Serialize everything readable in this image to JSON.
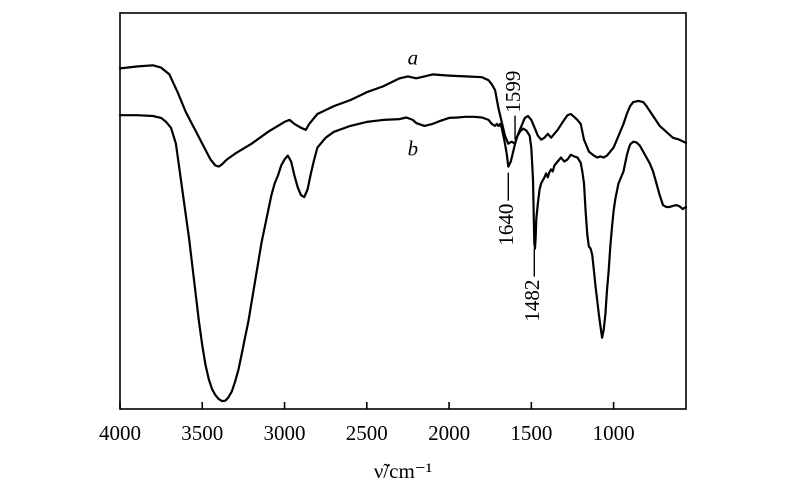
{
  "chart_data": {
    "type": "line",
    "xlabel": "ν̃/cm⁻¹",
    "xlim": [
      4000,
      560
    ],
    "ylim": [
      0,
      100
    ],
    "grid": false,
    "x_ticks": [
      4000,
      3500,
      3000,
      2500,
      2000,
      1500,
      1000
    ],
    "series": [
      {
        "name": "a",
        "label_at": [
          2220,
          87
        ],
        "points": [
          [
            4000,
            86
          ],
          [
            3900,
            86.5
          ],
          [
            3800,
            86.8
          ],
          [
            3750,
            86.2
          ],
          [
            3700,
            84.5
          ],
          [
            3650,
            80
          ],
          [
            3600,
            75
          ],
          [
            3550,
            71
          ],
          [
            3500,
            67
          ],
          [
            3450,
            63
          ],
          [
            3420,
            61.5
          ],
          [
            3400,
            61.2
          ],
          [
            3380,
            61.8
          ],
          [
            3350,
            63
          ],
          [
            3300,
            64.5
          ],
          [
            3200,
            67
          ],
          [
            3100,
            70
          ],
          [
            3000,
            72.5
          ],
          [
            2970,
            73
          ],
          [
            2940,
            72
          ],
          [
            2900,
            71
          ],
          [
            2870,
            70.5
          ],
          [
            2850,
            72
          ],
          [
            2800,
            74.5
          ],
          [
            2700,
            76.5
          ],
          [
            2600,
            78
          ],
          [
            2500,
            80
          ],
          [
            2400,
            81.5
          ],
          [
            2300,
            83.5
          ],
          [
            2250,
            84
          ],
          [
            2200,
            83.5
          ],
          [
            2150,
            84
          ],
          [
            2100,
            84.5
          ],
          [
            2000,
            84.2
          ],
          [
            1900,
            84
          ],
          [
            1800,
            83.8
          ],
          [
            1760,
            83
          ],
          [
            1740,
            82
          ],
          [
            1720,
            80.5
          ],
          [
            1700,
            76
          ],
          [
            1680,
            72.5
          ],
          [
            1660,
            69
          ],
          [
            1640,
            67
          ],
          [
            1620,
            67.5
          ],
          [
            1599,
            67
          ],
          [
            1580,
            69.5
          ],
          [
            1560,
            71.5
          ],
          [
            1540,
            73.5
          ],
          [
            1520,
            74
          ],
          [
            1500,
            73
          ],
          [
            1482,
            71.2
          ],
          [
            1460,
            69
          ],
          [
            1440,
            68
          ],
          [
            1420,
            68.5
          ],
          [
            1400,
            69.5
          ],
          [
            1380,
            68.5
          ],
          [
            1360,
            69.5
          ],
          [
            1340,
            70.5
          ],
          [
            1320,
            71.8
          ],
          [
            1300,
            73
          ],
          [
            1280,
            74.2
          ],
          [
            1260,
            74.5
          ],
          [
            1240,
            73.8
          ],
          [
            1220,
            73
          ],
          [
            1200,
            72
          ],
          [
            1180,
            68
          ],
          [
            1150,
            65
          ],
          [
            1120,
            64
          ],
          [
            1100,
            63.5
          ],
          [
            1080,
            63.8
          ],
          [
            1060,
            63.5
          ],
          [
            1040,
            64
          ],
          [
            1020,
            65
          ],
          [
            1000,
            66
          ],
          [
            980,
            68
          ],
          [
            960,
            70
          ],
          [
            940,
            72
          ],
          [
            920,
            74.5
          ],
          [
            900,
            76.5
          ],
          [
            880,
            77.5
          ],
          [
            850,
            77.8
          ],
          [
            820,
            77.5
          ],
          [
            800,
            76.5
          ],
          [
            760,
            74
          ],
          [
            720,
            71.5
          ],
          [
            680,
            70
          ],
          [
            640,
            68.5
          ],
          [
            600,
            68
          ],
          [
            560,
            67.2
          ]
        ]
      },
      {
        "name": "b",
        "label_at": [
          2220,
          64
        ],
        "points": [
          [
            4000,
            74.2
          ],
          [
            3900,
            74.2
          ],
          [
            3800,
            74
          ],
          [
            3750,
            73.5
          ],
          [
            3720,
            72.5
          ],
          [
            3690,
            71
          ],
          [
            3660,
            67
          ],
          [
            3640,
            61
          ],
          [
            3620,
            55
          ],
          [
            3600,
            49
          ],
          [
            3580,
            43
          ],
          [
            3560,
            36
          ],
          [
            3540,
            29
          ],
          [
            3520,
            22
          ],
          [
            3500,
            16
          ],
          [
            3480,
            11
          ],
          [
            3460,
            7.5
          ],
          [
            3440,
            5
          ],
          [
            3420,
            3.5
          ],
          [
            3400,
            2.5
          ],
          [
            3380,
            2
          ],
          [
            3360,
            2.1
          ],
          [
            3340,
            3
          ],
          [
            3320,
            4.5
          ],
          [
            3300,
            7
          ],
          [
            3280,
            10
          ],
          [
            3260,
            14
          ],
          [
            3240,
            18
          ],
          [
            3220,
            22
          ],
          [
            3200,
            27
          ],
          [
            3180,
            32
          ],
          [
            3160,
            37
          ],
          [
            3140,
            42
          ],
          [
            3120,
            46
          ],
          [
            3100,
            50
          ],
          [
            3080,
            54
          ],
          [
            3060,
            57
          ],
          [
            3040,
            59
          ],
          [
            3020,
            61.5
          ],
          [
            3000,
            63
          ],
          [
            2980,
            64
          ],
          [
            2960,
            62.5
          ],
          [
            2940,
            59
          ],
          [
            2920,
            56
          ],
          [
            2900,
            54
          ],
          [
            2880,
            53.5
          ],
          [
            2860,
            55.5
          ],
          [
            2840,
            59.5
          ],
          [
            2820,
            63
          ],
          [
            2800,
            66
          ],
          [
            2750,
            68.5
          ],
          [
            2700,
            70
          ],
          [
            2600,
            71.5
          ],
          [
            2500,
            72.5
          ],
          [
            2400,
            73
          ],
          [
            2300,
            73.2
          ],
          [
            2260,
            73.6
          ],
          [
            2220,
            73
          ],
          [
            2200,
            72.2
          ],
          [
            2150,
            71.5
          ],
          [
            2100,
            72
          ],
          [
            2050,
            72.8
          ],
          [
            2000,
            73.5
          ],
          [
            1950,
            73.6
          ],
          [
            1900,
            73.8
          ],
          [
            1850,
            73.8
          ],
          [
            1800,
            73.6
          ],
          [
            1760,
            73
          ],
          [
            1740,
            72
          ],
          [
            1720,
            71.5
          ],
          [
            1710,
            72
          ],
          [
            1700,
            71.5
          ],
          [
            1690,
            72
          ],
          [
            1680,
            71
          ],
          [
            1660,
            67
          ],
          [
            1650,
            64.5
          ],
          [
            1640,
            61.2
          ],
          [
            1625,
            62.5
          ],
          [
            1610,
            65
          ],
          [
            1590,
            68.5
          ],
          [
            1570,
            70
          ],
          [
            1550,
            70.8
          ],
          [
            1530,
            70.3
          ],
          [
            1510,
            69
          ],
          [
            1500,
            66
          ],
          [
            1490,
            58
          ],
          [
            1482,
            42
          ],
          [
            1478,
            40.5
          ],
          [
            1474,
            43
          ],
          [
            1470,
            48
          ],
          [
            1460,
            52
          ],
          [
            1450,
            55.5
          ],
          [
            1440,
            57
          ],
          [
            1420,
            58.5
          ],
          [
            1410,
            59.5
          ],
          [
            1400,
            58.5
          ],
          [
            1390,
            59.8
          ],
          [
            1380,
            60.5
          ],
          [
            1370,
            60
          ],
          [
            1360,
            61.5
          ],
          [
            1340,
            62.5
          ],
          [
            1320,
            63.5
          ],
          [
            1300,
            62.5
          ],
          [
            1280,
            63
          ],
          [
            1260,
            64.2
          ],
          [
            1240,
            63.8
          ],
          [
            1220,
            63.5
          ],
          [
            1200,
            62.2
          ],
          [
            1190,
            60
          ],
          [
            1180,
            57
          ],
          [
            1170,
            50
          ],
          [
            1160,
            44
          ],
          [
            1150,
            41
          ],
          [
            1140,
            40.5
          ],
          [
            1130,
            39
          ],
          [
            1120,
            35
          ],
          [
            1110,
            31
          ],
          [
            1100,
            27.5
          ],
          [
            1090,
            24
          ],
          [
            1080,
            21
          ],
          [
            1070,
            18
          ],
          [
            1060,
            20
          ],
          [
            1050,
            24
          ],
          [
            1040,
            30
          ],
          [
            1030,
            35
          ],
          [
            1020,
            41
          ],
          [
            1010,
            46
          ],
          [
            1000,
            50
          ],
          [
            990,
            53
          ],
          [
            980,
            55
          ],
          [
            970,
            57
          ],
          [
            960,
            58
          ],
          [
            950,
            59
          ],
          [
            940,
            60
          ],
          [
            930,
            62
          ],
          [
            920,
            64
          ],
          [
            910,
            65.5
          ],
          [
            900,
            66.8
          ],
          [
            880,
            67.5
          ],
          [
            860,
            67.3
          ],
          [
            840,
            66.5
          ],
          [
            820,
            65
          ],
          [
            800,
            63.5
          ],
          [
            780,
            62
          ],
          [
            760,
            60
          ],
          [
            740,
            57
          ],
          [
            720,
            54
          ],
          [
            700,
            51.5
          ],
          [
            680,
            51
          ],
          [
            660,
            51
          ],
          [
            640,
            51.3
          ],
          [
            620,
            51.5
          ],
          [
            600,
            51.2
          ],
          [
            580,
            50.5
          ],
          [
            560,
            51
          ]
        ]
      }
    ],
    "annotations": [
      {
        "text": "1599",
        "x": 1599,
        "series": "a",
        "orientation": "vertical-rotated",
        "position": "above"
      },
      {
        "text": "1640",
        "x": 1640,
        "series": "b",
        "orientation": "vertical-rotated",
        "position": "below"
      },
      {
        "text": "1482",
        "x": 1482,
        "series": "b",
        "orientation": "vertical-rotated",
        "position": "below"
      }
    ]
  }
}
